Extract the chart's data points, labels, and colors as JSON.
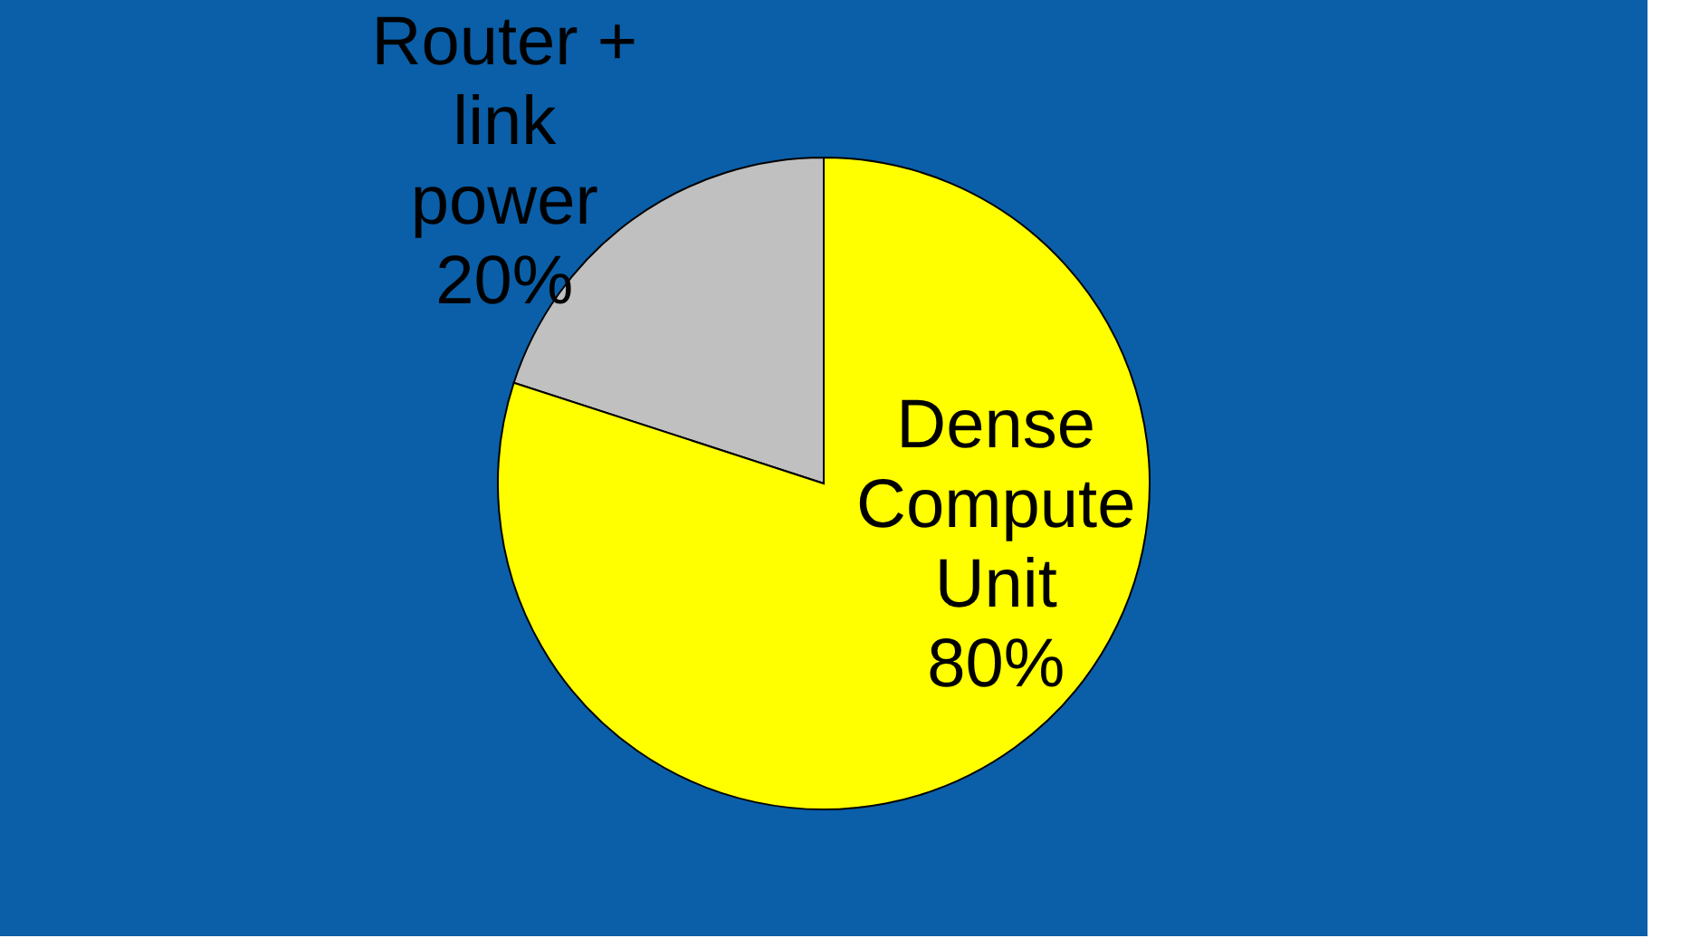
{
  "chart_data": {
    "type": "pie",
    "categories": [
      "Router + link power",
      "Dense Compute Unit"
    ],
    "values": [
      20,
      80
    ],
    "colors": [
      "#c0c0c0",
      "#ffff00"
    ],
    "value_labels": [
      "20%",
      "80%"
    ],
    "legend": false
  }
}
